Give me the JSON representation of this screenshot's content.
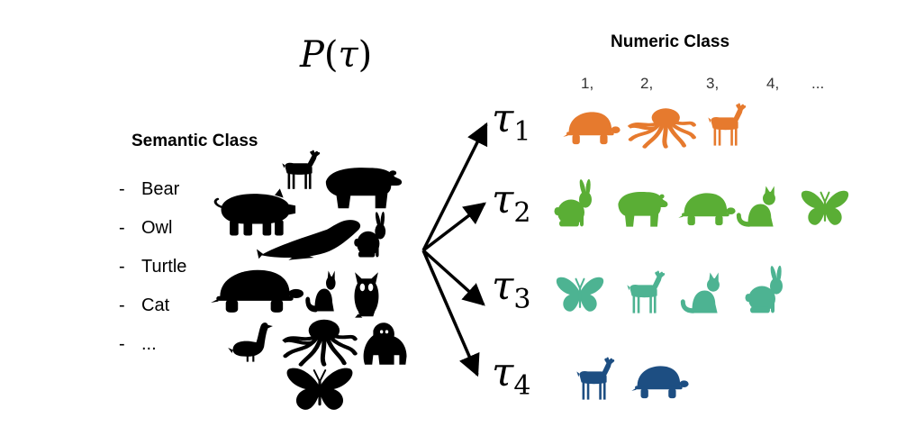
{
  "distribution": {
    "func": "P",
    "open": "(",
    "var": "τ",
    "close": ")"
  },
  "semantic_class": {
    "title": "Semantic Class",
    "items": [
      "Bear",
      "Owl",
      "Turtle",
      "Cat",
      "..."
    ],
    "dash": "-"
  },
  "numeric_class": {
    "title": "Numeric Class",
    "labels": [
      "1,",
      "2,",
      "3,",
      "4,",
      "..."
    ]
  },
  "animal_pool": [
    "pig",
    "deer",
    "bear",
    "seal",
    "rabbit",
    "turtle",
    "cat",
    "owl",
    "goose",
    "octopus",
    "gorilla",
    "butterfly"
  ],
  "pool_color": "#000000",
  "tasks": [
    {
      "symbol": "τ",
      "sub": "1",
      "color": "#e67a2e",
      "animals": [
        "turtle",
        "octopus",
        "deer"
      ]
    },
    {
      "symbol": "τ",
      "sub": "2",
      "color": "#5aae35",
      "animals": [
        "rabbit",
        "bear",
        "turtle",
        "cat",
        "butterfly"
      ]
    },
    {
      "symbol": "τ",
      "sub": "3",
      "color": "#4db392",
      "animals": [
        "butterfly",
        "deer",
        "cat",
        "rabbit"
      ]
    },
    {
      "symbol": "τ",
      "sub": "4",
      "color": "#1d4e82",
      "animals": [
        "deer",
        "turtle"
      ]
    }
  ]
}
